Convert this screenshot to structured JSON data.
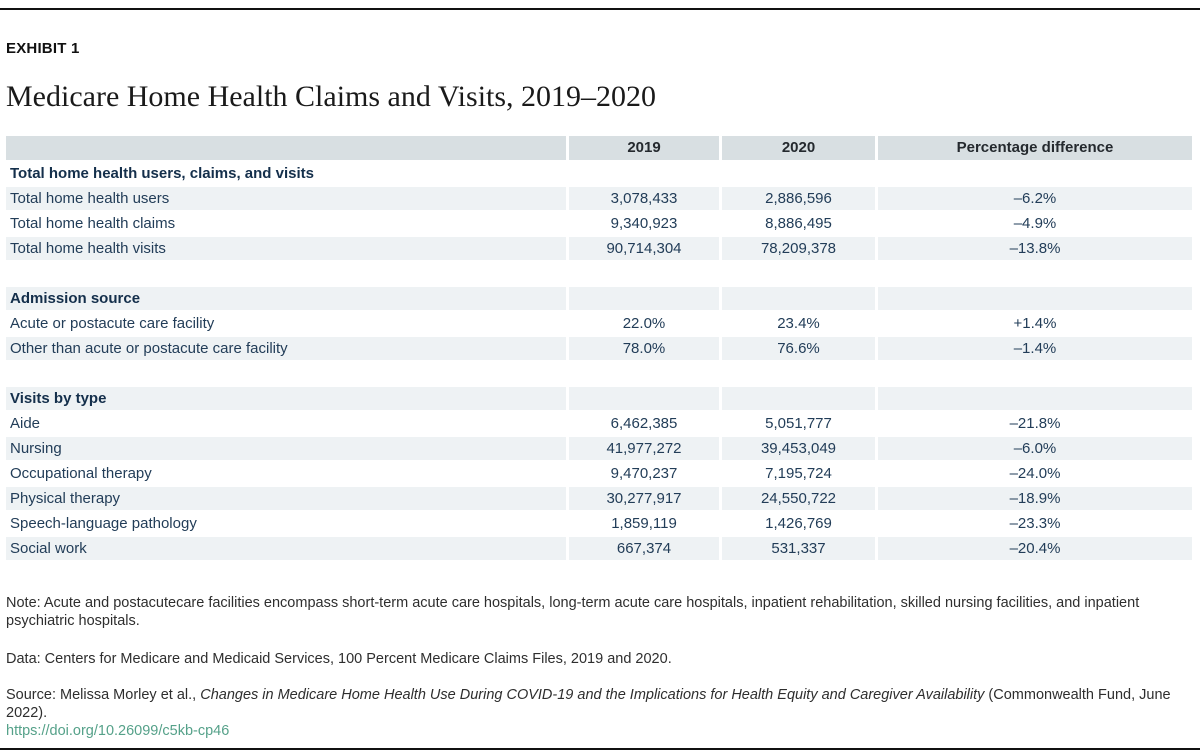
{
  "page": {
    "exhibit_label": "EXHIBIT 1"
  },
  "chart_data": {
    "type": "table",
    "title": "Medicare Home Health Claims and Visits, 2019–2020",
    "columns": [
      "",
      "2019",
      "2020",
      "Percentage difference"
    ],
    "sections": [
      {
        "header": "Total home health users, claims, and visits",
        "rows": [
          {
            "label": "Total home health users",
            "y2019": "3,078,433",
            "y2020": "2,886,596",
            "diff": "–6.2%"
          },
          {
            "label": "Total home health claims",
            "y2019": "9,340,923",
            "y2020": "8,886,495",
            "diff": "–4.9%"
          },
          {
            "label": "Total home health visits",
            "y2019": "90,714,304",
            "y2020": "78,209,378",
            "diff": "–13.8%"
          }
        ]
      },
      {
        "header": "Admission source",
        "rows": [
          {
            "label": "Acute or postacute care facility",
            "y2019": "22.0%",
            "y2020": "23.4%",
            "diff": "+1.4%"
          },
          {
            "label": "Other than acute or postacute care facility",
            "y2019": "78.0%",
            "y2020": "76.6%",
            "diff": "–1.4%"
          }
        ]
      },
      {
        "header": "Visits by type",
        "rows": [
          {
            "label": "Aide",
            "y2019": "6,462,385",
            "y2020": "5,051,777",
            "diff": "–21.8%"
          },
          {
            "label": "Nursing",
            "y2019": "41,977,272",
            "y2020": "39,453,049",
            "diff": "–6.0%"
          },
          {
            "label": "Occupational therapy",
            "y2019": "9,470,237",
            "y2020": "7,195,724",
            "diff": "–24.0%"
          },
          {
            "label": "Physical therapy",
            "y2019": "30,277,917",
            "y2020": "24,550,722",
            "diff": "–18.9%"
          },
          {
            "label": "Speech-language pathology",
            "y2019": "1,859,119",
            "y2020": "1,426,769",
            "diff": "–23.3%"
          },
          {
            "label": "Social work",
            "y2019": "667,374",
            "y2020": "531,337",
            "diff": "–20.4%"
          }
        ]
      }
    ]
  },
  "notes": {
    "note": "Note: Acute and postacutecare facilities encompass short-term acute care hospitals, long-term acute care hospitals, inpatient rehabilitation, skilled nursing facilities, and inpatient psychiatric hospitals.",
    "data": "Data: Centers for Medicare and Medicaid Services, 100 Percent Medicare Claims Files, 2019 and 2020.",
    "source_prefix": "Source: Melissa Morley et al., ",
    "source_title": "Changes in Medicare Home Health Use During COVID-19 and the Implications for Health Equity and Caregiver Availability",
    "source_suffix": " (Commonwealth Fund, June 2022).",
    "link": "https://doi.org/10.26099/c5kb-cp46"
  },
  "colors": {
    "header_row_bg": "#d8dfe2",
    "row_alt_bg": "#eef2f4",
    "table_text": "#223d58",
    "section_header_text": "#142f4b",
    "title_text": "#1a1a1a",
    "footer_text": "#2e2e2e",
    "link": "#55a189",
    "rule": "#111111"
  }
}
